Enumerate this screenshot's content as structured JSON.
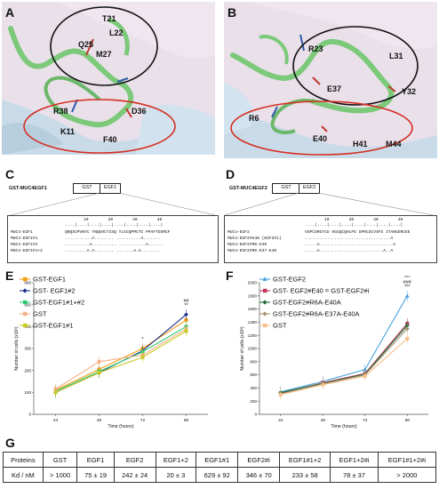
{
  "panels": {
    "A": {
      "letter": "A",
      "residues": [
        "T21",
        "L22",
        "Q25",
        "M27",
        "R38",
        "D36",
        "K11",
        "F40"
      ]
    },
    "B": {
      "letter": "B",
      "residues": [
        "R23",
        "L31",
        "E37",
        "Y32",
        "R6",
        "E40",
        "H41",
        "M44"
      ]
    },
    "C": {
      "letter": "C",
      "construct": "GST-MUC4EGF1",
      "boxes": [
        "GST",
        "EGF1"
      ],
      "ruler": "10        20        30        40",
      "ticks": "....|....|....|....|....|....|....|....|",
      "rows": [
        {
          "name": "MUC4-EGF1",
          "seq": "QNQSCPVNYC YNQGHCYISQ TLGCQPMCTC PPAFTDSRCF"
        },
        {
          "name": "MUC4-EGF1#1",
          "seq": "...........A........ ..........A......."
        },
        {
          "name": "MUC4-EGF1#2",
          "seq": "..........A.......... ...........A......"
        },
        {
          "name": "MUC4-EGF1#1+2",
          "seq": ".........A.A........ .......A.A........"
        }
      ]
    },
    "D": {
      "letter": "D",
      "construct": "GST-MUC4EGF2",
      "boxes": [
        "GST",
        "EGF2"
      ],
      "ruler": "10        20        30        40",
      "ticks": "....|....|....|....|....|....|....|....|",
      "rows": [
        {
          "name": "MUC4-EGF2",
          "seq": "VSPCSRGYCD HGGQCQHLPS GPRCSCVSFS ITANGERCEE"
        },
        {
          "name": "MUC4-EGF2#E40 (EGF2#i)",
          "seq": "...................................A"
        },
        {
          "name": "MUC4-EGF2#R6-E40",
          "seq": ".....A..............................A"
        },
        {
          "name": "MUC4-EGF2#R6-E37-E40",
          "seq": ".....A..........................A..A"
        }
      ]
    },
    "E": {
      "letter": "E"
    },
    "F": {
      "letter": "F"
    },
    "G": {
      "letter": "G"
    }
  },
  "charts": [
    {
      "type": "line",
      "ylabel": "Number of cells (x10³)",
      "xlabel": "Time (hours)",
      "x": [
        24,
        48,
        72,
        96
      ],
      "ylim": [
        0,
        600
      ],
      "yticks": [
        0,
        100,
        200,
        300,
        400,
        500,
        600
      ],
      "annotations": [
        {
          "x": 72,
          "text": "*"
        },
        {
          "x": 96,
          "text": "##"
        },
        {
          "x": 96,
          "text": "**"
        }
      ],
      "series": [
        {
          "name": "GST-EGF1",
          "color": "#f39c12",
          "values": [
            110,
            205,
            300,
            430
          ]
        },
        {
          "name": "GST- EGF1#2",
          "color": "#1f2f8c",
          "values": [
            100,
            190,
            290,
            455
          ]
        },
        {
          "name": "GST-EGF1#1+#2",
          "color": "#2ecc71",
          "values": [
            105,
            195,
            285,
            400
          ]
        },
        {
          "name": "GST",
          "color": "#f5b08a",
          "values": [
            115,
            240,
            270,
            390
          ]
        },
        {
          "name": "GST-EGF1#1",
          "color": "#c9c922",
          "values": [
            100,
            190,
            260,
            380
          ]
        }
      ]
    },
    {
      "type": "line",
      "ylabel": "Number of cells (x10³)",
      "xlabel": "Time (hours)",
      "x": [
        24,
        48,
        72,
        96
      ],
      "ylim": [
        0,
        2000
      ],
      "yticks": [
        0,
        200,
        400,
        600,
        800,
        1000,
        1200,
        1400,
        1600,
        1800,
        2000
      ],
      "annotations": [
        {
          "x": 96,
          "text": "°°°"
        },
        {
          "x": 96,
          "text": "###"
        },
        {
          "x": 96,
          "text": "***"
        }
      ],
      "series": [
        {
          "name": "GST-EGF2",
          "color": "#4aa3df",
          "values": [
            340,
            500,
            680,
            1800
          ]
        },
        {
          "name": "GST- EGF2#E40 = GST-EGF2#i",
          "color": "#c0395a",
          "values": [
            320,
            480,
            620,
            1380
          ]
        },
        {
          "name": "GST-EGF2#R6A-E40A",
          "color": "#1a6b3a",
          "values": [
            330,
            470,
            610,
            1350
          ]
        },
        {
          "name": "GST-EGF2#R6A-E37A-E40A",
          "color": "#a89470",
          "values": [
            310,
            460,
            600,
            1300
          ]
        },
        {
          "name": "GST",
          "color": "#f5c08a",
          "values": [
            300,
            450,
            580,
            1150
          ]
        }
      ]
    }
  ],
  "table": {
    "header_label": "Proteins",
    "columns": [
      "GST",
      "EGF1",
      "EGF2",
      "EGF1+2",
      "EGF1#1",
      "EGF2#i",
      "EGF1#1+2",
      "EGF1+2#i",
      "EGF1#1+2#i"
    ],
    "row_label": "Kd / nM",
    "values": [
      "> 1000",
      "75 ± 19",
      "242 ± 24",
      "20 ± 3",
      "629 ± 92",
      "346 ± 70",
      "233 ± 58",
      "78 ± 37",
      "> 2000"
    ]
  }
}
